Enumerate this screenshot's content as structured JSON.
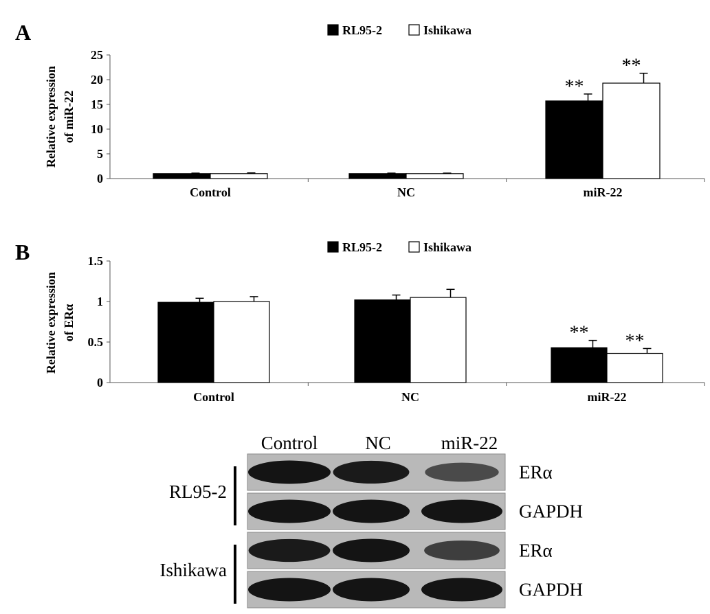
{
  "chart_data": [
    {
      "panel": "A",
      "type": "bar",
      "ylabel": [
        "Relative expression",
        "of  miR-22"
      ],
      "categories": [
        "Control",
        "NC",
        "miR-22"
      ],
      "ylim": [
        0,
        25
      ],
      "yticks": [
        0,
        5,
        10,
        15,
        20,
        25
      ],
      "legend": "top-center",
      "series": [
        {
          "name": "RL95-2",
          "color": "#000000",
          "values": [
            1.0,
            1.0,
            15.7
          ],
          "errors": [
            0.1,
            0.1,
            1.4
          ]
        },
        {
          "name": "Ishikawa",
          "color": "#ffffff",
          "values": [
            1.0,
            1.0,
            19.3
          ],
          "errors": [
            0.15,
            0.1,
            2.0
          ]
        }
      ],
      "annotations": [
        {
          "category": "miR-22",
          "series": "RL95-2",
          "text": "**"
        },
        {
          "category": "miR-22",
          "series": "Ishikawa",
          "text": "**"
        }
      ]
    },
    {
      "panel": "B",
      "type": "bar",
      "ylabel": [
        "Relative expression",
        "of  ERα"
      ],
      "categories": [
        "Control",
        "NC",
        "miR-22"
      ],
      "ylim": [
        0,
        1.5
      ],
      "yticks": [
        0,
        0.5,
        1,
        1.5
      ],
      "legend": "top-center",
      "series": [
        {
          "name": "RL95-2",
          "color": "#000000",
          "values": [
            0.99,
            1.02,
            0.43
          ],
          "errors": [
            0.05,
            0.06,
            0.09
          ]
        },
        {
          "name": "Ishikawa",
          "color": "#ffffff",
          "values": [
            1.0,
            1.05,
            0.36
          ],
          "errors": [
            0.06,
            0.1,
            0.06
          ]
        }
      ],
      "annotations": [
        {
          "category": "miR-22",
          "series": "RL95-2",
          "text": "**"
        },
        {
          "category": "miR-22",
          "series": "Ishikawa",
          "text": "**"
        }
      ]
    }
  ],
  "blot": {
    "lanes": [
      "Control",
      "NC",
      "miR-22"
    ],
    "groups": [
      {
        "cell": "RL95-2",
        "rows": [
          {
            "protein": "ERα",
            "intensity": [
              1.0,
              0.95,
              0.55
            ]
          },
          {
            "protein": "GAPDH",
            "intensity": [
              1.0,
              1.0,
              1.0
            ]
          }
        ]
      },
      {
        "cell": "Ishikawa",
        "rows": [
          {
            "protein": "ERα",
            "intensity": [
              0.95,
              1.0,
              0.65
            ]
          },
          {
            "protein": "GAPDH",
            "intensity": [
              1.0,
              1.0,
              1.0
            ]
          }
        ]
      }
    ]
  }
}
